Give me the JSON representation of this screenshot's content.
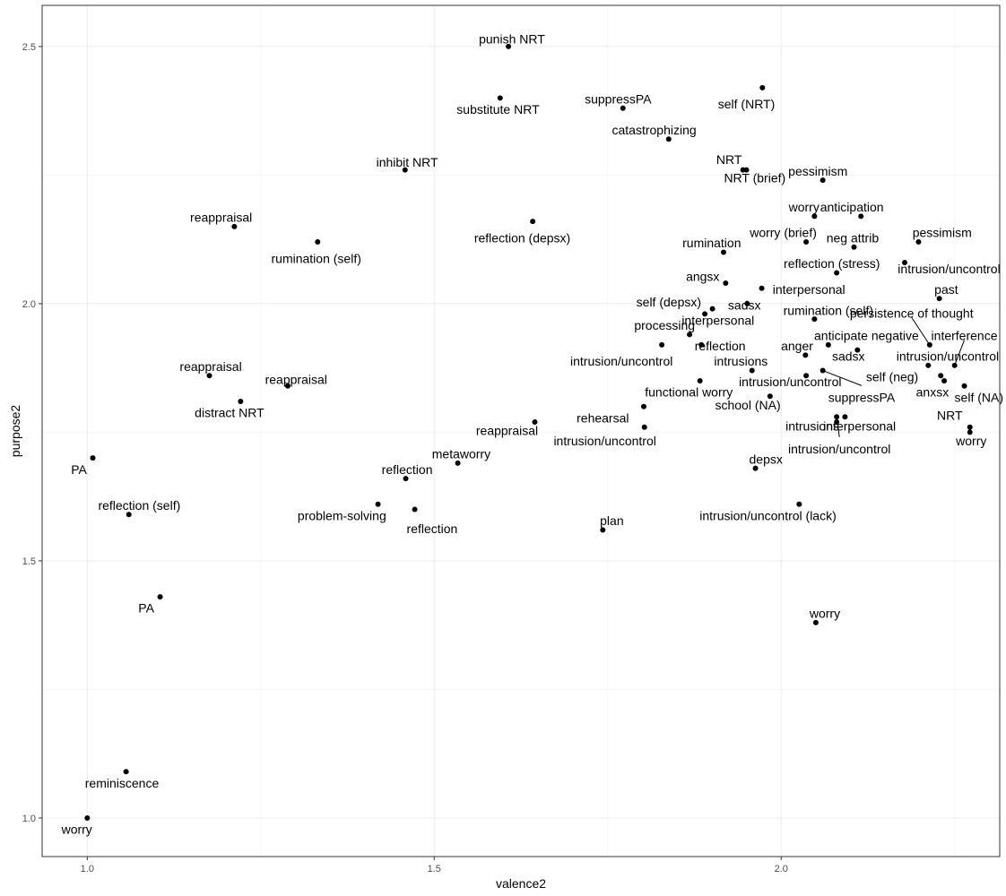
{
  "chart_data": {
    "type": "scatter",
    "xlabel": "valence2",
    "ylabel": "purpose2",
    "xlim": [
      0.935,
      2.315
    ],
    "ylim": [
      0.925,
      2.58
    ],
    "x_ticks": [
      1.0,
      1.5,
      2.0
    ],
    "x_tick_labels": [
      "1.0",
      "1.5",
      "2.0"
    ],
    "y_ticks": [
      1.0,
      1.5,
      2.0,
      2.5
    ],
    "y_tick_labels": [
      "1.0",
      "1.5",
      "2.0",
      "2.5"
    ],
    "grid": true,
    "points": [
      {
        "label": "punish NRT",
        "x": 1.607,
        "y": 2.5,
        "lx": 1.612,
        "ly": 2.515
      },
      {
        "label": "substitute NRT",
        "x": 1.595,
        "y": 2.4,
        "lx": 1.592,
        "ly": 2.378
      },
      {
        "label": "suppressPA",
        "x": 1.772,
        "y": 2.38,
        "lx": 1.765,
        "ly": 2.398
      },
      {
        "label": "self (NRT)",
        "x": 1.973,
        "y": 2.42,
        "lx": 1.95,
        "ly": 2.388
      },
      {
        "label": "catastrophizing",
        "x": 1.838,
        "y": 2.32,
        "lx": 1.817,
        "ly": 2.338
      },
      {
        "label": "inhibit NRT",
        "x": 1.458,
        "y": 2.26,
        "lx": 1.461,
        "ly": 2.275
      },
      {
        "label": "NRT",
        "x": 1.945,
        "y": 2.26,
        "lx": 1.925,
        "ly": 2.28
      },
      {
        "label": "NRT (brief)",
        "x": 1.95,
        "y": 2.26,
        "lx": 1.962,
        "ly": 2.245
      },
      {
        "label": "pessimism",
        "x": 2.06,
        "y": 2.24,
        "lx": 2.053,
        "ly": 2.258
      },
      {
        "label": "reappraisal",
        "x": 1.212,
        "y": 2.15,
        "lx": 1.193,
        "ly": 2.168
      },
      {
        "label": "reflection (depsx)",
        "x": 1.642,
        "y": 2.16,
        "lx": 1.627,
        "ly": 2.128
      },
      {
        "label": "worry",
        "x": 2.048,
        "y": 2.17,
        "lx": 2.033,
        "ly": 2.188
      },
      {
        "label": "anticipation",
        "x": 2.115,
        "y": 2.17,
        "lx": 2.102,
        "ly": 2.188
      },
      {
        "label": "rumination (self)",
        "x": 1.332,
        "y": 2.12,
        "lx": 1.33,
        "ly": 2.088
      },
      {
        "label": "worry (brief)",
        "x": 2.036,
        "y": 2.12,
        "lx": 2.003,
        "ly": 2.138
      },
      {
        "label": "neg attrib",
        "x": 2.105,
        "y": 2.11,
        "lx": 2.103,
        "ly": 2.128
      },
      {
        "label": "pessimism",
        "x": 2.198,
        "y": 2.12,
        "lx": 2.232,
        "ly": 2.138
      },
      {
        "label": "rumination",
        "x": 1.917,
        "y": 2.1,
        "lx": 1.9,
        "ly": 2.118
      },
      {
        "label": "reflection (stress)",
        "x": 2.08,
        "y": 2.06,
        "lx": 2.073,
        "ly": 2.078
      },
      {
        "label": "intrusion/uncontrol",
        "x": 2.178,
        "y": 2.08,
        "lx": 2.242,
        "ly": 2.068
      },
      {
        "label": "angsx",
        "x": 1.92,
        "y": 2.04,
        "lx": 1.887,
        "ly": 2.053
      },
      {
        "label": "interpersonal",
        "x": 1.972,
        "y": 2.03,
        "lx": 2.04,
        "ly": 2.028
      },
      {
        "label": "past",
        "x": 2.228,
        "y": 2.01,
        "lx": 2.238,
        "ly": 2.028
      },
      {
        "label": "self (depsx)",
        "x": 1.901,
        "y": 1.99,
        "lx": 1.838,
        "ly": 2.003
      },
      {
        "label": "sadsx",
        "x": 1.951,
        "y": 2.0,
        "lx": 1.947,
        "ly": 1.997
      },
      {
        "label": "rumination (self)",
        "x": 2.048,
        "y": 1.97,
        "lx": 2.068,
        "ly": 1.987
      },
      {
        "label": "persistence of thought",
        "x": 2.214,
        "y": 1.92,
        "lx": 2.188,
        "ly": 1.982
      },
      {
        "label": "processing",
        "x": 1.868,
        "y": 1.94,
        "lx": 1.832,
        "ly": 1.958
      },
      {
        "label": "interpersonal",
        "x": 1.89,
        "y": 1.98,
        "lx": 1.909,
        "ly": 1.968
      },
      {
        "label": "anticipate negative",
        "x": 2.068,
        "y": 1.92,
        "lx": 2.123,
        "ly": 1.938
      },
      {
        "label": "interference",
        "x": 2.25,
        "y": 1.88,
        "lx": 2.264,
        "ly": 1.938
      },
      {
        "label": "intrusion/uncontrol",
        "x": 1.828,
        "y": 1.92,
        "lx": 1.77,
        "ly": 1.888
      },
      {
        "label": "reflection",
        "x": 1.885,
        "y": 1.92,
        "lx": 1.912,
        "ly": 1.918
      },
      {
        "label": "anger",
        "x": 2.035,
        "y": 1.9,
        "lx": 2.023,
        "ly": 1.918
      },
      {
        "label": "sadsx",
        "x": 2.11,
        "y": 1.91,
        "lx": 2.097,
        "ly": 1.898
      },
      {
        "label": "intrusion/uncontrol",
        "x": 2.212,
        "y": 1.88,
        "lx": 2.24,
        "ly": 1.898
      },
      {
        "label": "intrusions",
        "x": 1.958,
        "y": 1.87,
        "lx": 1.942,
        "ly": 1.888
      },
      {
        "label": "reappraisal",
        "x": 1.176,
        "y": 1.86,
        "lx": 1.178,
        "ly": 1.878
      },
      {
        "label": "reappraisal",
        "x": 1.289,
        "y": 1.84,
        "lx": 1.301,
        "ly": 1.853
      },
      {
        "label": "functional worry",
        "x": 1.883,
        "y": 1.85,
        "lx": 1.867,
        "ly": 1.828
      },
      {
        "label": "intrusion/uncontrol",
        "x": 2.036,
        "y": 1.86,
        "lx": 2.013,
        "ly": 1.848
      },
      {
        "label": "self (neg)",
        "x": 2.23,
        "y": 1.86,
        "lx": 2.16,
        "ly": 1.858
      },
      {
        "label": "anxsx",
        "x": 2.235,
        "y": 1.85,
        "lx": 2.218,
        "ly": 1.828
      },
      {
        "label": "self (NA)",
        "x": 2.264,
        "y": 1.84,
        "lx": 2.285,
        "ly": 1.818
      },
      {
        "label": "suppressPA",
        "x": 2.06,
        "y": 1.87,
        "lx": 2.116,
        "ly": 1.818
      },
      {
        "label": "school (NA)",
        "x": 1.984,
        "y": 1.82,
        "lx": 1.952,
        "ly": 1.803
      },
      {
        "label": "distract NRT",
        "x": 1.221,
        "y": 1.81,
        "lx": 1.205,
        "ly": 1.788
      },
      {
        "label": "rehearsal",
        "x": 1.802,
        "y": 1.8,
        "lx": 1.743,
        "ly": 1.778
      },
      {
        "label": "NRT",
        "x": 2.272,
        "y": 1.76,
        "lx": 2.243,
        "ly": 1.783
      },
      {
        "label": "reappraisal",
        "x": 1.645,
        "y": 1.77,
        "lx": 1.605,
        "ly": 1.753
      },
      {
        "label": "intrusions",
        "x": 2.08,
        "y": 1.77,
        "lx": 2.045,
        "ly": 1.762
      },
      {
        "label": "interpersonal",
        "x": 2.092,
        "y": 1.78,
        "lx": 2.113,
        "ly": 1.762
      },
      {
        "label": "intrusion/uncontrol",
        "x": 1.803,
        "y": 1.76,
        "lx": 1.746,
        "ly": 1.733
      },
      {
        "label": "worry",
        "x": 2.272,
        "y": 1.75,
        "lx": 2.274,
        "ly": 1.733
      },
      {
        "label": "intrusion/uncontrol",
        "x": 2.08,
        "y": 1.78,
        "lx": 2.084,
        "ly": 1.718
      },
      {
        "label": "metaworry",
        "x": 1.534,
        "y": 1.69,
        "lx": 1.539,
        "ly": 1.708
      },
      {
        "label": "depsx",
        "x": 1.963,
        "y": 1.68,
        "lx": 1.978,
        "ly": 1.698
      },
      {
        "label": "PA",
        "x": 1.008,
        "y": 1.7,
        "lx": 0.988,
        "ly": 1.678
      },
      {
        "label": "reflection",
        "x": 1.459,
        "y": 1.66,
        "lx": 1.461,
        "ly": 1.678
      },
      {
        "label": "problem-solving",
        "x": 1.419,
        "y": 1.61,
        "lx": 1.367,
        "ly": 1.588
      },
      {
        "label": "reflection (self)",
        "x": 1.06,
        "y": 1.59,
        "lx": 1.075,
        "ly": 1.608
      },
      {
        "label": "intrusion/uncontrol (lack)",
        "x": 2.026,
        "y": 1.61,
        "lx": 1.981,
        "ly": 1.588
      },
      {
        "label": "reflection",
        "x": 1.472,
        "y": 1.6,
        "lx": 1.497,
        "ly": 1.563
      },
      {
        "label": "plan",
        "x": 1.743,
        "y": 1.56,
        "lx": 1.756,
        "ly": 1.578
      },
      {
        "label": "PA",
        "x": 1.105,
        "y": 1.43,
        "lx": 1.085,
        "ly": 1.408
      },
      {
        "label": "worry",
        "x": 2.05,
        "y": 1.38,
        "lx": 2.063,
        "ly": 1.398
      },
      {
        "label": "reminiscence",
        "x": 1.056,
        "y": 1.09,
        "lx": 1.05,
        "ly": 1.068
      },
      {
        "label": "worry",
        "x": 1.0,
        "y": 1.0,
        "lx": 0.985,
        "ly": 0.978
      }
    ]
  }
}
